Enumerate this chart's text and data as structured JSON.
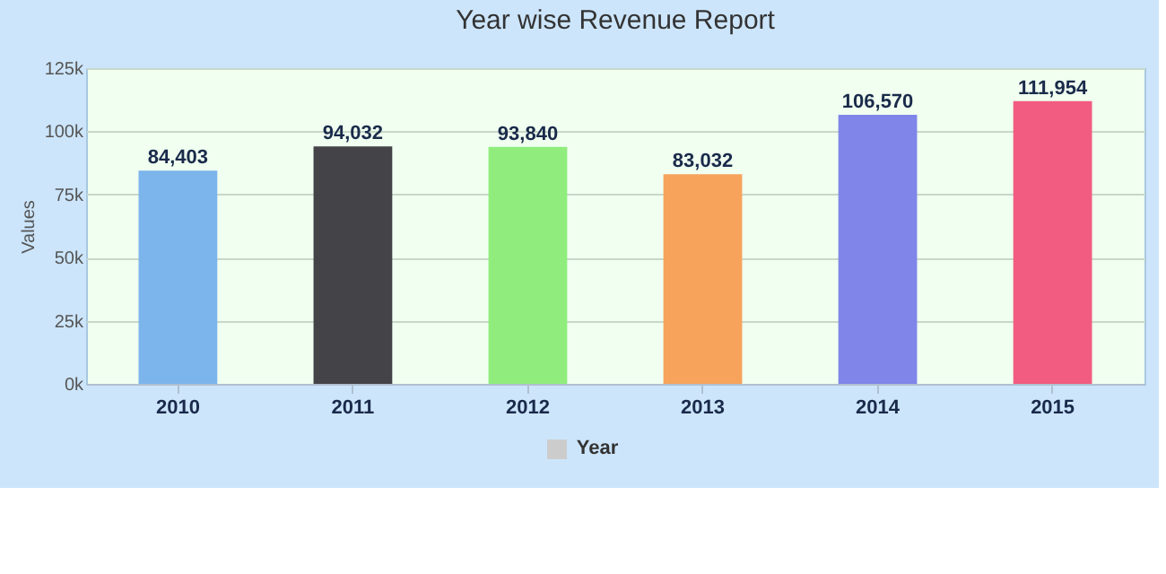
{
  "chart_data": {
    "type": "bar",
    "title": "Year wise Revenue Report",
    "ylabel": "Values",
    "categories": [
      "2010",
      "2011",
      "2012",
      "2013",
      "2014",
      "2015"
    ],
    "series": [
      {
        "name": "Year",
        "color": "#cccccc",
        "colors": [
          "#7cb5ec",
          "#434348",
          "#90ed7d",
          "#f7a35c",
          "#8085e9",
          "#f15c80"
        ],
        "values": [
          84403,
          94032,
          93840,
          83032,
          106570,
          111954
        ],
        "value_labels": [
          "84,403",
          "94,032",
          "93,840",
          "83,032",
          "106,570",
          "111,954"
        ]
      }
    ],
    "ylim": [
      0,
      125000
    ],
    "yticks": [
      {
        "value": 0,
        "label": "0k"
      },
      {
        "value": 25000,
        "label": "25k"
      },
      {
        "value": 50000,
        "label": "50k"
      },
      {
        "value": 75000,
        "label": "75k"
      },
      {
        "value": 100000,
        "label": "100k"
      },
      {
        "value": 125000,
        "label": "125k"
      }
    ],
    "grid": "y",
    "legend": "bottom"
  }
}
